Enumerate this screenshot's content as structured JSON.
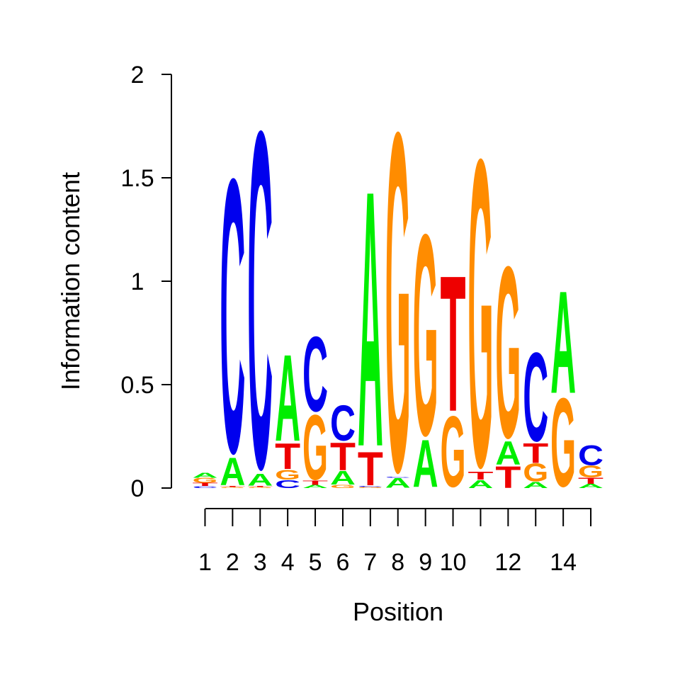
{
  "chart_data": {
    "type": "sequence-logo",
    "xlabel": "Position",
    "ylabel": "Information content",
    "ylim": [
      0,
      2
    ],
    "y_ticks": [
      "0",
      "0.5",
      "1",
      "1.5",
      "2"
    ],
    "x_ticks": [
      "1",
      "2",
      "3",
      "4",
      "5",
      "6",
      "7",
      "8",
      "9",
      "10",
      "12",
      "14"
    ],
    "positions": [
      1,
      2,
      3,
      4,
      5,
      6,
      7,
      8,
      9,
      10,
      11,
      12,
      13,
      14,
      15
    ],
    "colors": {
      "A": "#00ee00",
      "C": "#0000ee",
      "G": "#ff8c00",
      "T": "#ee0000"
    },
    "stacks": [
      [
        [
          "C",
          0.01
        ],
        [
          "T",
          0.015
        ],
        [
          "G",
          0.025
        ],
        [
          "A",
          0.025
        ]
      ],
      [
        [
          "G",
          0.005
        ],
        [
          "T",
          0.005
        ],
        [
          "A",
          0.14
        ],
        [
          "C",
          1.39
        ]
      ],
      [
        [
          "G",
          0.005
        ],
        [
          "T",
          0.005
        ],
        [
          "A",
          0.06
        ],
        [
          "C",
          1.71
        ]
      ],
      [
        [
          "C",
          0.04
        ],
        [
          "G",
          0.05
        ],
        [
          "T",
          0.13
        ],
        [
          "A",
          0.44
        ]
      ],
      [
        [
          "A",
          0.015
        ],
        [
          "T",
          0.02
        ],
        [
          "G",
          0.33
        ],
        [
          "C",
          0.38
        ]
      ],
      [
        [
          "G",
          0.015
        ],
        [
          "A",
          0.07
        ],
        [
          "T",
          0.14
        ],
        [
          "C",
          0.18
        ]
      ],
      [
        [
          "G",
          0.005
        ],
        [
          "C",
          0.005
        ],
        [
          "T",
          0.17
        ],
        [
          "A",
          1.3
        ]
      ],
      [
        [
          "A",
          0.05
        ],
        [
          "C",
          0.005
        ],
        [
          "G",
          1.72
        ]
      ],
      [
        [
          "A",
          0.24
        ],
        [
          "G",
          1.02
        ]
      ],
      [
        [
          "G",
          0.36
        ],
        [
          "T",
          0.69
        ]
      ],
      [
        [
          "A",
          0.04
        ],
        [
          "T",
          0.04
        ],
        [
          "G",
          1.56
        ]
      ],
      [
        [
          "T",
          0.11
        ],
        [
          "A",
          0.12
        ],
        [
          "G",
          0.87
        ]
      ],
      [
        [
          "A",
          0.03
        ],
        [
          "G",
          0.09
        ],
        [
          "T",
          0.1
        ],
        [
          "C",
          0.45
        ]
      ],
      [
        [
          "G",
          0.45
        ],
        [
          "A",
          0.52
        ]
      ],
      [
        [
          "A",
          0.02
        ],
        [
          "T",
          0.03
        ],
        [
          "G",
          0.06
        ],
        [
          "C",
          0.1
        ]
      ]
    ]
  }
}
